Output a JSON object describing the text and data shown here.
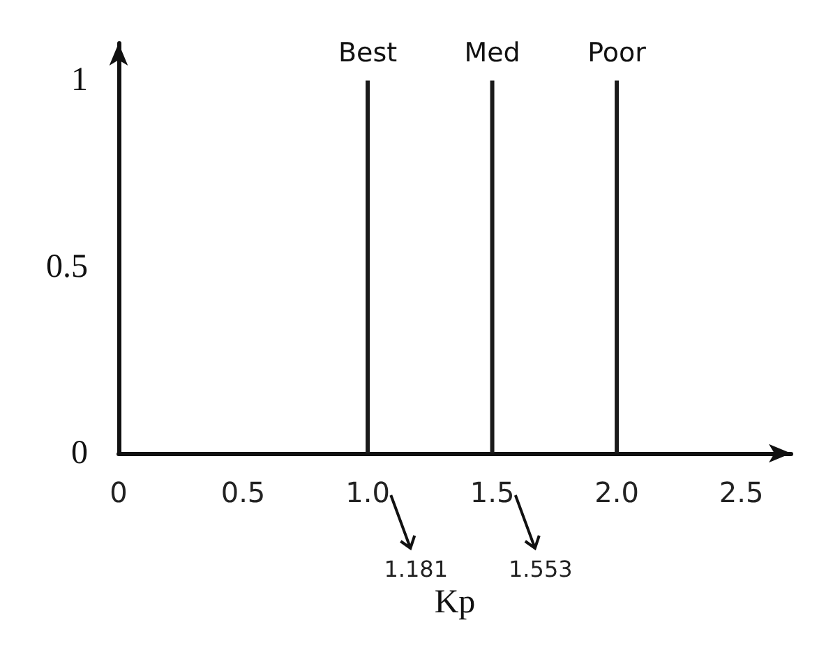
{
  "chart_data": {
    "type": "bar",
    "xlabel": "Kp",
    "series": [
      {
        "name": "Best",
        "color": "#1a1a1a",
        "x": [
          1.0
        ],
        "values": [
          1
        ]
      },
      {
        "name": "Med",
        "color": "#1a1a1a",
        "x": [
          1.5
        ],
        "values": [
          1
        ]
      },
      {
        "name": "Poor",
        "color": "#1a1a1a",
        "x": [
          2.0
        ],
        "values": [
          1
        ]
      }
    ],
    "xlim": [
      0,
      2.7
    ],
    "xticks": [
      0,
      0.5,
      {
        "value": 1,
        "label": "1.0"
      },
      1.5,
      {
        "value": 2,
        "label": "2.0"
      },
      2.5
    ],
    "ylim": [
      0,
      1.1
    ],
    "yticks": [
      0,
      0.5,
      1
    ],
    "annotations": [
      "1.181",
      "1.553"
    ],
    "legend": false
  }
}
